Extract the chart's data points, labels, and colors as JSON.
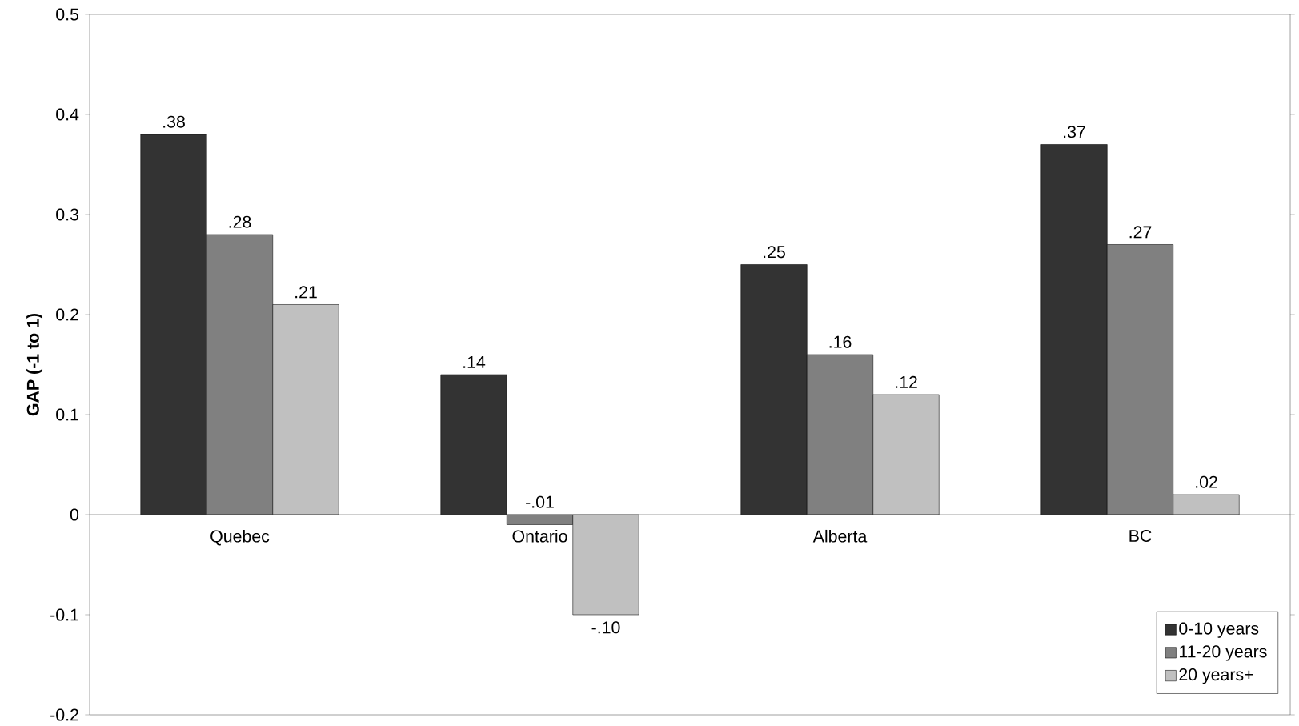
{
  "chart_data": {
    "type": "bar",
    "ylabel": "GAP (-1 to 1)",
    "categories": [
      "Quebec",
      "Ontario",
      "Alberta",
      "BC"
    ],
    "series": [
      {
        "name": "0-10 years",
        "color": "#333333",
        "values": [
          0.38,
          0.14,
          0.25,
          0.37
        ],
        "value_labels": [
          ".38",
          ".14",
          ".25",
          ".37"
        ]
      },
      {
        "name": "11-20 years",
        "color": "#808080",
        "values": [
          0.28,
          -0.01,
          0.16,
          0.27
        ],
        "value_labels": [
          ".28",
          "-.01",
          ".16",
          ".27"
        ]
      },
      {
        "name": "20 years+",
        "color": "#c0c0c0",
        "values": [
          0.21,
          -0.1,
          0.12,
          0.02
        ],
        "value_labels": [
          ".21",
          "-.10",
          ".12",
          ".02"
        ]
      }
    ],
    "ylim": [
      -0.2,
      0.5
    ],
    "yticks": [
      -0.2,
      -0.1,
      0,
      0.1,
      0.2,
      0.3,
      0.4,
      0.5
    ],
    "grid": false,
    "legend": "bottom right"
  }
}
